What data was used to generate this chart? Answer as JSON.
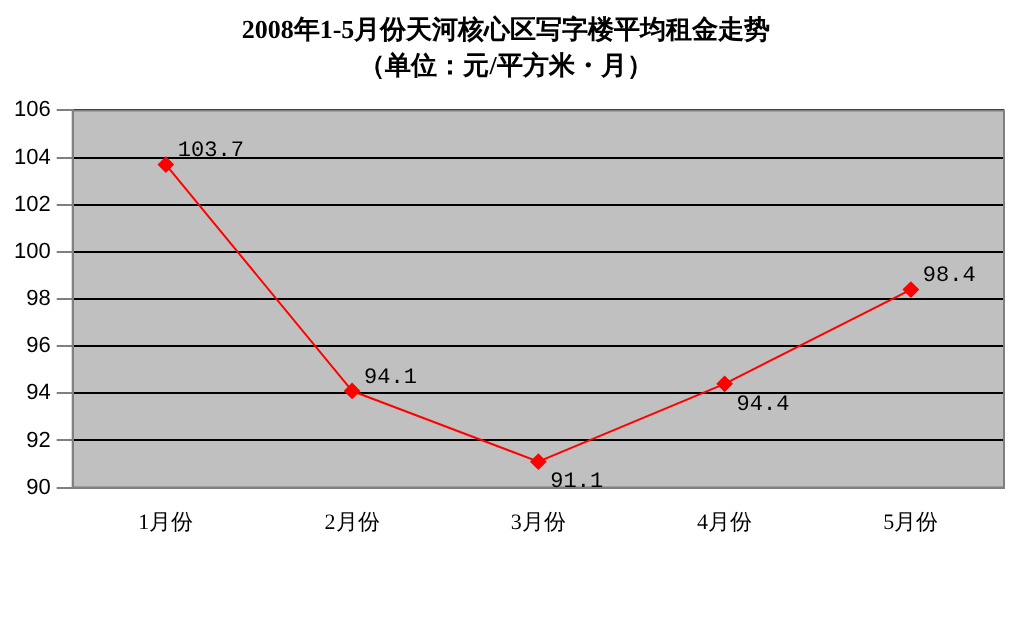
{
  "chart_data": {
    "type": "line",
    "title": "2008年1-5月份天河核心区写字楼平均租金走势",
    "subtitle": "（单位：元/平方米・月）",
    "categories": [
      "1月份",
      "2月份",
      "3月份",
      "4月份",
      "5月份"
    ],
    "series": [
      {
        "color": "#ff0000",
        "values": [
          103.7,
          94.1,
          91.1,
          94.4,
          98.4
        ]
      }
    ],
    "ylim": [
      90,
      106
    ],
    "yticks": [
      90,
      92,
      94,
      96,
      98,
      100,
      102,
      104,
      106
    ],
    "grid": "y",
    "legend": false,
    "marker": "diamond",
    "line_style": "solid",
    "data_labels": true
  }
}
